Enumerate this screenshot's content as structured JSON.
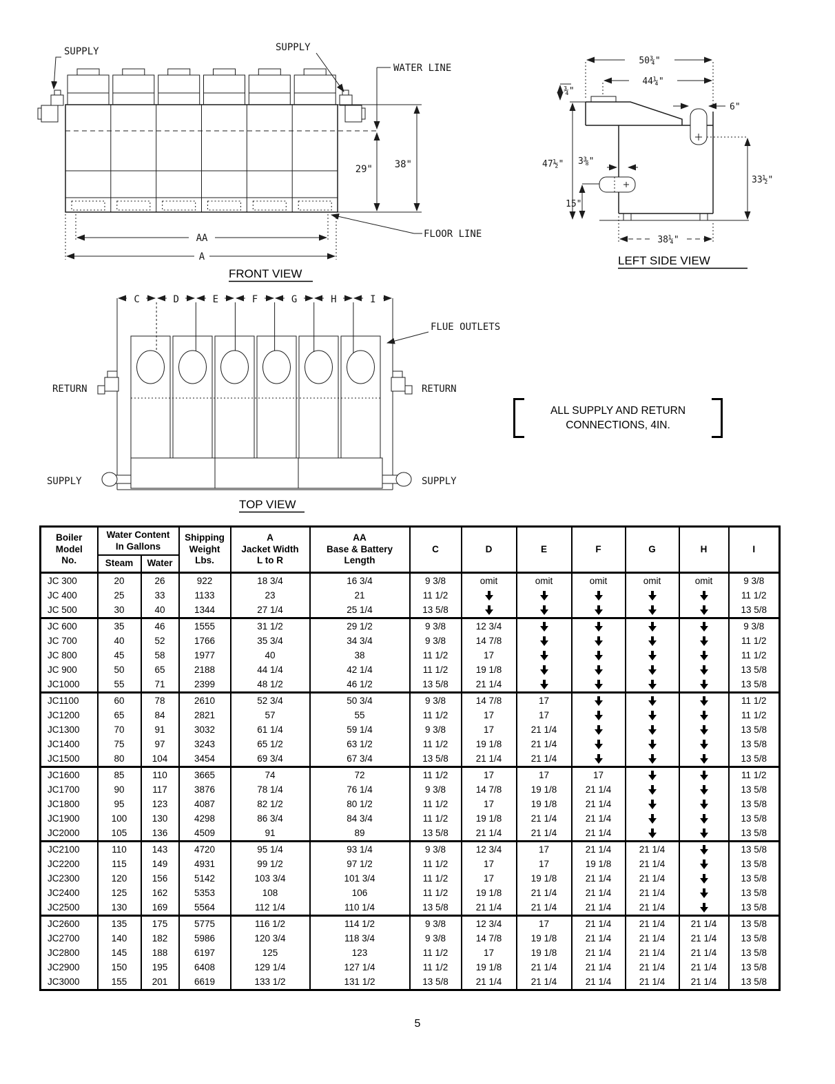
{
  "page_number": "5",
  "front_view": {
    "title": "FRONT VIEW",
    "supply_left": "SUPPLY",
    "supply_right": "SUPPLY",
    "water_line": "WATER LINE",
    "floor_line": "FLOOR LINE",
    "dim_29": "29\"",
    "dim_38": "38\"",
    "dim_aa": "AA",
    "dim_a": "A"
  },
  "left_side_view": {
    "title": "LEFT SIDE VIEW",
    "dim_50_34": "50¾\"",
    "dim_44_14": "44¼\"",
    "dim_34": "¾\"",
    "dim_6": "6\"",
    "dim_47_12": "47½\"",
    "dim_3_38": "3⅜\"",
    "dim_33_12": "33½\"",
    "dim_15": "15\"",
    "dim_38_14": "38¼\""
  },
  "top_view": {
    "title": "TOP VIEW",
    "letters": [
      "C",
      "D",
      "E",
      "F",
      "G",
      "H",
      "I"
    ],
    "return_left": "RETURN",
    "return_right": "RETURN",
    "supply_left": "SUPPLY",
    "supply_right": "SUPPLY",
    "flue_outlets": "FLUE OUTLETS"
  },
  "note": {
    "line1": "ALL SUPPLY AND RETURN",
    "line2": "CONNECTIONS, 4IN."
  },
  "table": {
    "headers": {
      "model": "Boiler\nModel\nNo.",
      "water_content": "Water Content\nIn Gallons",
      "steam": "Steam",
      "water": "Water",
      "weight": "Shipping\nWeight\nLbs.",
      "a": "A\nJacket Width\nL to R",
      "aa": "AA\nBase & Battery\nLength",
      "letters": [
        "C",
        "D",
        "E",
        "F",
        "G",
        "H",
        "I"
      ]
    },
    "groups": [
      [
        [
          "JC 300",
          "20",
          "26",
          "922",
          "18 3/4",
          "16 3/4",
          "9 3/8",
          "omit",
          "omit",
          "omit",
          "omit",
          "omit",
          "9 3/8"
        ],
        [
          "JC 400",
          "25",
          "33",
          "1133",
          "23",
          "21",
          "11 1/2",
          "↓",
          "↓",
          "↓",
          "↓",
          "↓",
          "11 1/2"
        ],
        [
          "JC 500",
          "30",
          "40",
          "1344",
          "27 1/4",
          "25 1/4",
          "13 5/8",
          "↓",
          "↓",
          "↓",
          "↓",
          "↓",
          "13 5/8"
        ]
      ],
      [
        [
          "JC 600",
          "35",
          "46",
          "1555",
          "31 1/2",
          "29 1/2",
          "9 3/8",
          "12 3/4",
          "↓",
          "↓",
          "↓",
          "↓",
          "9 3/8"
        ],
        [
          "JC 700",
          "40",
          "52",
          "1766",
          "35 3/4",
          "34 3/4",
          "9 3/8",
          "14 7/8",
          "↓",
          "↓",
          "↓",
          "↓",
          "11 1/2"
        ],
        [
          "JC 800",
          "45",
          "58",
          "1977",
          "40",
          "38",
          "11 1/2",
          "17",
          "↓",
          "↓",
          "↓",
          "↓",
          "11 1/2"
        ],
        [
          "JC 900",
          "50",
          "65",
          "2188",
          "44 1/4",
          "42 1/4",
          "11 1/2",
          "19 1/8",
          "↓",
          "↓",
          "↓",
          "↓",
          "13 5/8"
        ],
        [
          "JC1000",
          "55",
          "71",
          "2399",
          "48 1/2",
          "46 1/2",
          "13 5/8",
          "21 1/4",
          "↓",
          "↓",
          "↓",
          "↓",
          "13 5/8"
        ]
      ],
      [
        [
          "JC1100",
          "60",
          "78",
          "2610",
          "52 3/4",
          "50 3/4",
          "9 3/8",
          "14 7/8",
          "17",
          "↓",
          "↓",
          "↓",
          "11 1/2"
        ],
        [
          "JC1200",
          "65",
          "84",
          "2821",
          "57",
          "55",
          "11 1/2",
          "17",
          "17",
          "↓",
          "↓",
          "↓",
          "11 1/2"
        ],
        [
          "JC1300",
          "70",
          "91",
          "3032",
          "61 1/4",
          "59 1/4",
          "9 3/8",
          "17",
          "21 1/4",
          "↓",
          "↓",
          "↓",
          "13 5/8"
        ],
        [
          "JC1400",
          "75",
          "97",
          "3243",
          "65 1/2",
          "63 1/2",
          "11 1/2",
          "19 1/8",
          "21 1/4",
          "↓",
          "↓",
          "↓",
          "13 5/8"
        ],
        [
          "JC1500",
          "80",
          "104",
          "3454",
          "69 3/4",
          "67 3/4",
          "13 5/8",
          "21 1/4",
          "21 1/4",
          "↓",
          "↓",
          "↓",
          "13 5/8"
        ]
      ],
      [
        [
          "JC1600",
          "85",
          "110",
          "3665",
          "74",
          "72",
          "11 1/2",
          "17",
          "17",
          "17",
          "↓",
          "↓",
          "11 1/2"
        ],
        [
          "JC1700",
          "90",
          "117",
          "3876",
          "78 1/4",
          "76 1/4",
          "9 3/8",
          "14 7/8",
          "19 1/8",
          "21 1/4",
          "↓",
          "↓",
          "13 5/8"
        ],
        [
          "JC1800",
          "95",
          "123",
          "4087",
          "82 1/2",
          "80 1/2",
          "11 1/2",
          "17",
          "19 1/8",
          "21 1/4",
          "↓",
          "↓",
          "13 5/8"
        ],
        [
          "JC1900",
          "100",
          "130",
          "4298",
          "86 3/4",
          "84 3/4",
          "11 1/2",
          "19 1/8",
          "21 1/4",
          "21 1/4",
          "↓",
          "↓",
          "13 5/8"
        ],
        [
          "JC2000",
          "105",
          "136",
          "4509",
          "91",
          "89",
          "13 5/8",
          "21 1/4",
          "21 1/4",
          "21 1/4",
          "↓",
          "↓",
          "13 5/8"
        ]
      ],
      [
        [
          "JC2100",
          "110",
          "143",
          "4720",
          "95 1/4",
          "93 1/4",
          "9 3/8",
          "12 3/4",
          "17",
          "21 1/4",
          "21 1/4",
          "↓",
          "13 5/8"
        ],
        [
          "JC2200",
          "115",
          "149",
          "4931",
          "99 1/2",
          "97 1/2",
          "11 1/2",
          "17",
          "17",
          "19 1/8",
          "21 1/4",
          "↓",
          "13 5/8"
        ],
        [
          "JC2300",
          "120",
          "156",
          "5142",
          "103 3/4",
          "101 3/4",
          "11 1/2",
          "17",
          "19 1/8",
          "21 1/4",
          "21 1/4",
          "↓",
          "13 5/8"
        ],
        [
          "JC2400",
          "125",
          "162",
          "5353",
          "108",
          "106",
          "11 1/2",
          "19 1/8",
          "21 1/4",
          "21 1/4",
          "21 1/4",
          "↓",
          "13 5/8"
        ],
        [
          "JC2500",
          "130",
          "169",
          "5564",
          "112 1/4",
          "110 1/4",
          "13 5/8",
          "21 1/4",
          "21 1/4",
          "21 1/4",
          "21 1/4",
          "↓",
          "13 5/8"
        ]
      ],
      [
        [
          "JC2600",
          "135",
          "175",
          "5775",
          "116 1/2",
          "114 1/2",
          "9 3/8",
          "12 3/4",
          "17",
          "21 1/4",
          "21 1/4",
          "21 1/4",
          "13 5/8"
        ],
        [
          "JC2700",
          "140",
          "182",
          "5986",
          "120 3/4",
          "118 3/4",
          "9 3/8",
          "14 7/8",
          "19 1/8",
          "21 1/4",
          "21 1/4",
          "21 1/4",
          "13 5/8"
        ],
        [
          "JC2800",
          "145",
          "188",
          "6197",
          "125",
          "123",
          "11 1/2",
          "17",
          "19 1/8",
          "21 1/4",
          "21 1/4",
          "21 1/4",
          "13 5/8"
        ],
        [
          "JC2900",
          "150",
          "195",
          "6408",
          "129 1/4",
          "127 1/4",
          "11 1/2",
          "19 1/8",
          "21 1/4",
          "21 1/4",
          "21 1/4",
          "21 1/4",
          "13 5/8"
        ],
        [
          "JC3000",
          "155",
          "201",
          "6619",
          "133 1/2",
          "131 1/2",
          "13 5/8",
          "21 1/4",
          "21 1/4",
          "21 1/4",
          "21 1/4",
          "21 1/4",
          "13 5/8"
        ]
      ]
    ]
  }
}
